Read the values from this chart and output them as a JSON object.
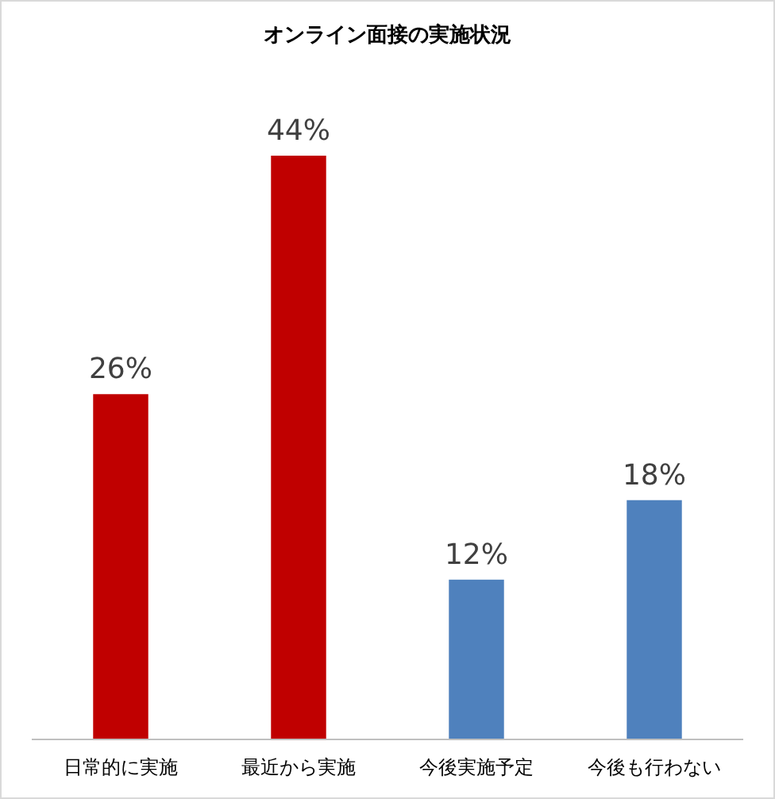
{
  "chart_data": {
    "type": "bar",
    "title": "オンライン面接の実施状況",
    "categories": [
      "日常的に実施",
      "最近から実施",
      "今後実施予定",
      "今後も行わない"
    ],
    "values": [
      26,
      44,
      12,
      18
    ],
    "colors": [
      "#c00000",
      "#c00000",
      "#4f81bd",
      "#4f81bd"
    ],
    "value_labels": [
      "26%",
      "44%",
      "12%",
      "18%"
    ]
  }
}
